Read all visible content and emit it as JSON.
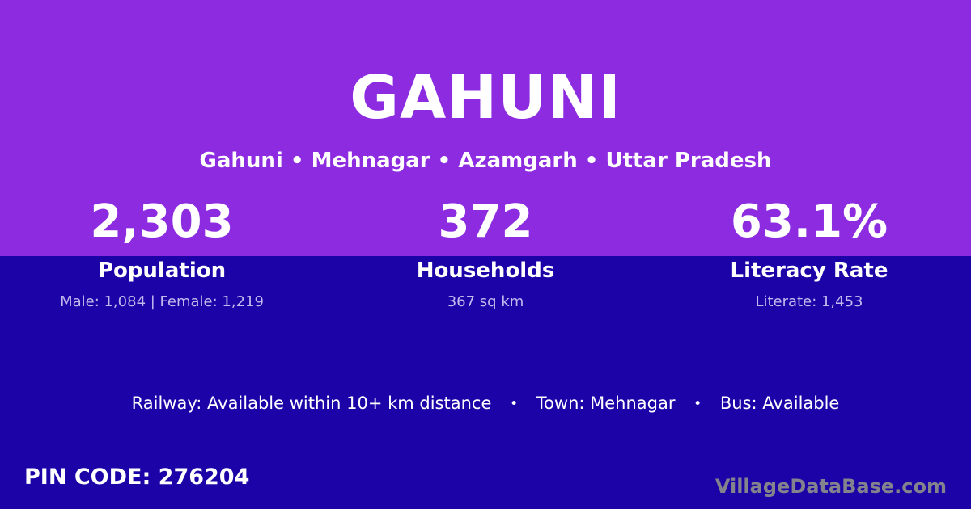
{
  "header": {
    "title": "GAHUNI",
    "breadcrumb": "Gahuni • Mehnagar • Azamgarh • Uttar Pradesh"
  },
  "stats": [
    {
      "value": "2,303",
      "label": "Population",
      "detail": "Male: 1,084 | Female: 1,219"
    },
    {
      "value": "372",
      "label": "Households",
      "detail": "367 sq km"
    },
    {
      "value": "63.1%",
      "label": "Literacy Rate",
      "detail": "Literate: 1,453"
    }
  ],
  "transport": {
    "separator": "•",
    "segments": [
      "Railway: Available within 10+ km distance",
      "Town: Mehnagar",
      "Bus: Available"
    ]
  },
  "footer": {
    "pin_code": "PIN CODE: 276204",
    "watermark": "VillageDataBase.com"
  },
  "colors": {
    "top_background": "#8c2be0",
    "bottom_background": "#1b03a8",
    "detail_text": "#c4b9ec",
    "watermark_text": "#83838e"
  }
}
